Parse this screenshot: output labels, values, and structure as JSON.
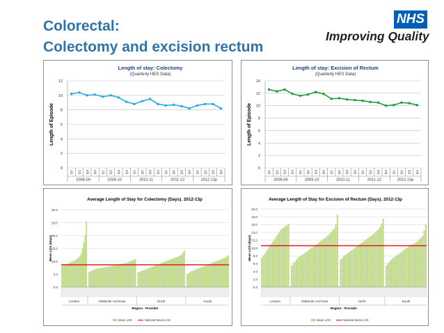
{
  "slide": {
    "title_line1": "Colorectal:",
    "title_line2": "Colectomy and excision rectum",
    "logo_text": "NHS",
    "tagline": "Improving Quality"
  },
  "colors": {
    "title": "#2e74a8",
    "nhs_blue": "#005eb8",
    "line1": "#27a9e1",
    "line2": "#1a9e38",
    "bars": "#c4dc8e",
    "national": "#e3191b"
  },
  "chart_data": [
    {
      "type": "line",
      "title": "Length of stay: Colectomy",
      "subtitle": "(Quarterly HES Data)",
      "ylabel": "Length of Episode",
      "ylim": [
        0,
        12
      ],
      "yticks": [
        0,
        2,
        4,
        6,
        8,
        10,
        12
      ],
      "categories": [
        "Q1",
        "Q2",
        "Q3",
        "Q4",
        "Q1",
        "Q2",
        "Q3",
        "Q4",
        "Q1",
        "Q2",
        "Q3",
        "Q4",
        "Q1",
        "Q2",
        "Q3",
        "Q4",
        "Q1",
        "Q2",
        "Q3",
        "Q4"
      ],
      "groups": [
        "2008-09",
        "2009-10",
        "2010-11",
        "2011-12",
        "2012-13p"
      ],
      "series": [
        {
          "values": [
            10.2,
            10.4,
            10.0,
            10.1,
            9.8,
            10.0,
            9.7,
            9.1,
            8.8,
            9.2,
            9.5,
            8.8,
            8.6,
            8.7,
            8.5,
            8.2,
            8.6,
            8.8,
            8.8,
            8.2
          ]
        }
      ],
      "color": "#27a9e1"
    },
    {
      "type": "line",
      "title": "Length of stay: Excision of Rectum",
      "subtitle": "(Quarterly HES Data)",
      "ylabel": "Length of Episode",
      "ylim": [
        0,
        14
      ],
      "yticks": [
        0,
        2,
        4,
        6,
        8,
        10,
        12,
        14
      ],
      "categories": [
        "Q1",
        "Q2",
        "Q3",
        "Q4",
        "Q1",
        "Q2",
        "Q3",
        "Q4",
        "Q1",
        "Q2",
        "Q3",
        "Q4",
        "Q1",
        "Q2",
        "Q3",
        "Q4",
        "Q1",
        "Q2",
        "Q3",
        "Q4"
      ],
      "groups": [
        "2008-09",
        "2009-10",
        "2010-11",
        "2011-12",
        "2012-13p"
      ],
      "series": [
        {
          "values": [
            12.6,
            12.3,
            12.6,
            11.9,
            11.6,
            11.8,
            12.2,
            11.9,
            11.1,
            11.2,
            11.0,
            10.9,
            10.8,
            10.6,
            10.5,
            10.0,
            10.1,
            10.5,
            10.4,
            10.1
          ]
        }
      ],
      "color": "#1a9e38"
    },
    {
      "type": "bar",
      "title": "Average Length of Stay for Colectomy (Days). 2012-13p",
      "ylabel": "Mean LOS (days)",
      "xlabel": "Region - Provider",
      "ylim": [
        0,
        30
      ],
      "yticks": [
        "0.0",
        "5.0",
        "10.0",
        "15.0",
        "20.0",
        "25.0",
        "30.0"
      ],
      "regions": [
        "London",
        "Midlands And East",
        "North",
        "South"
      ],
      "national": 8.6,
      "legend": [
        "Mean LOS",
        "National Mean LOS"
      ],
      "series": [
        {
          "values": [
            8.2,
            8.4,
            8.6,
            8.8,
            9.0,
            9.2,
            9.4,
            9.6,
            9.8,
            10.0,
            10.3,
            10.6,
            11.0,
            11.4,
            12.0,
            13.0,
            15.0,
            17.5,
            20.0,
            25.5
          ]
        },
        {
          "values": [
            5.8,
            6.0,
            6.3,
            6.5,
            6.7,
            6.9,
            7.0,
            7.1,
            7.2,
            7.3,
            7.4,
            7.5,
            7.6,
            7.7,
            7.8,
            7.9,
            8.0,
            8.1,
            8.2,
            8.3,
            8.4,
            8.5,
            8.6,
            8.7,
            8.8,
            8.9,
            9.0,
            9.1,
            9.2,
            9.3,
            9.5,
            9.7,
            9.9,
            10.1,
            10.3,
            10.5,
            10.8
          ]
        },
        {
          "values": [
            5.6,
            5.8,
            6.0,
            6.2,
            6.4,
            6.6,
            6.8,
            7.0,
            7.2,
            7.4,
            7.6,
            7.8,
            8.0,
            8.2,
            8.4,
            8.6,
            8.8,
            9.0,
            9.2,
            9.4,
            9.6,
            9.8,
            10.0,
            10.2,
            10.4,
            10.6,
            10.8,
            11.0,
            11.2,
            11.4,
            11.6,
            11.8,
            12.0,
            12.2,
            12.6,
            13.4,
            14.2
          ]
        },
        {
          "values": [
            4.8,
            5.2,
            5.6,
            6.0,
            6.2,
            6.4,
            6.6,
            6.8,
            7.0,
            7.2,
            7.4,
            7.6,
            7.8,
            8.0,
            8.2,
            8.4,
            8.6,
            8.8,
            9.0,
            9.2,
            9.4,
            9.6,
            9.8,
            10.0,
            10.2,
            10.4,
            10.6,
            10.8,
            11.0,
            11.2,
            11.5,
            11.9,
            12.2
          ]
        }
      ]
    },
    {
      "type": "bar",
      "title": "Average Length of Stay for Excision of Rectum (Days). 2012-13p",
      "ylabel": "Mean LOS (days)",
      "xlabel": "Region - Provider",
      "ylim": [
        0,
        20
      ],
      "yticks": [
        "0.0",
        "2.0",
        "4.0",
        "6.0",
        "8.0",
        "10.0",
        "12.0",
        "14.0",
        "16.0",
        "18.0",
        "20.0"
      ],
      "regions": [
        "London",
        "Midlands And East",
        "North",
        "South"
      ],
      "national": 10.6,
      "legend": [
        "Mean LOS",
        "National Mean LOS"
      ],
      "series": [
        {
          "values": [
            7.5,
            8.0,
            8.6,
            9.2,
            9.8,
            10.4,
            11.0,
            11.6,
            12.2,
            12.8,
            13.4,
            14.0,
            14.6,
            15.0,
            15.2,
            15.6,
            15.8,
            16.2
          ]
        },
        {
          "values": [
            5.5,
            6.0,
            6.5,
            7.0,
            7.5,
            7.8,
            8.0,
            8.3,
            8.6,
            8.9,
            9.2,
            9.5,
            9.8,
            10.1,
            10.4,
            10.7,
            11.0,
            11.3,
            11.6,
            11.9,
            12.2,
            12.5,
            12.8,
            13.2,
            13.6,
            14.0,
            14.5,
            15.0,
            16.0,
            18.5
          ]
        },
        {
          "values": [
            7.0,
            7.4,
            7.8,
            8.2,
            8.5,
            8.8,
            9.1,
            9.4,
            9.7,
            10.0,
            10.3,
            10.6,
            10.9,
            11.2,
            11.5,
            11.8,
            12.1,
            12.4,
            12.7,
            13.0,
            13.3,
            13.6,
            14.0,
            14.4,
            14.8,
            15.4,
            16.2,
            17.5
          ]
        },
        {
          "values": [
            5.5,
            6.0,
            6.5,
            7.0,
            7.3,
            7.6,
            7.9,
            8.2,
            8.5,
            8.8,
            9.1,
            9.4,
            9.7,
            10.0,
            10.3,
            10.6,
            10.8,
            11.0,
            11.2,
            11.5,
            11.8,
            12.2,
            12.6,
            13.0,
            14.5,
            16.0
          ]
        }
      ]
    }
  ]
}
